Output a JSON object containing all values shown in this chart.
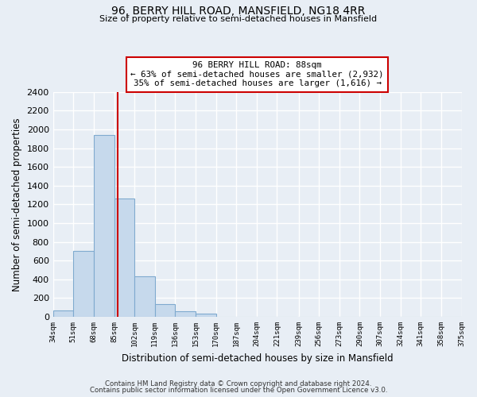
{
  "title_line1": "96, BERRY HILL ROAD, MANSFIELD, NG18 4RR",
  "title_line2": "Size of property relative to semi-detached houses in Mansfield",
  "xlabel": "Distribution of semi-detached houses by size in Mansfield",
  "ylabel": "Number of semi-detached properties",
  "bar_values": [
    70,
    700,
    1940,
    1260,
    430,
    135,
    60,
    35,
    0,
    0,
    0,
    0,
    0,
    0,
    0,
    0,
    0,
    0,
    0,
    0
  ],
  "bin_labels": [
    "34sqm",
    "51sqm",
    "68sqm",
    "85sqm",
    "102sqm",
    "119sqm",
    "136sqm",
    "153sqm",
    "170sqm",
    "187sqm",
    "204sqm",
    "221sqm",
    "239sqm",
    "256sqm",
    "273sqm",
    "290sqm",
    "307sqm",
    "324sqm",
    "341sqm",
    "358sqm",
    "375sqm"
  ],
  "bin_edges": [
    34,
    51,
    68,
    85,
    102,
    119,
    136,
    153,
    170,
    187,
    204,
    221,
    239,
    256,
    273,
    290,
    307,
    324,
    341,
    358,
    375
  ],
  "property_size": 88,
  "bar_color": "#c6d9ec",
  "bar_edge_color": "#7faacf",
  "property_line_color": "#cc0000",
  "annotation_text_line1": "96 BERRY HILL ROAD: 88sqm",
  "annotation_text_line2": "← 63% of semi-detached houses are smaller (2,932)",
  "annotation_text_line3": "35% of semi-detached houses are larger (1,616) →",
  "annotation_box_color": "#ffffff",
  "annotation_box_edge": "#cc0000",
  "ylim": [
    0,
    2400
  ],
  "yticks": [
    0,
    200,
    400,
    600,
    800,
    1000,
    1200,
    1400,
    1600,
    1800,
    2000,
    2200,
    2400
  ],
  "footer_line1": "Contains HM Land Registry data © Crown copyright and database right 2024.",
  "footer_line2": "Contains public sector information licensed under the Open Government Licence v3.0.",
  "background_color": "#e8eef5",
  "grid_color": "#ffffff"
}
